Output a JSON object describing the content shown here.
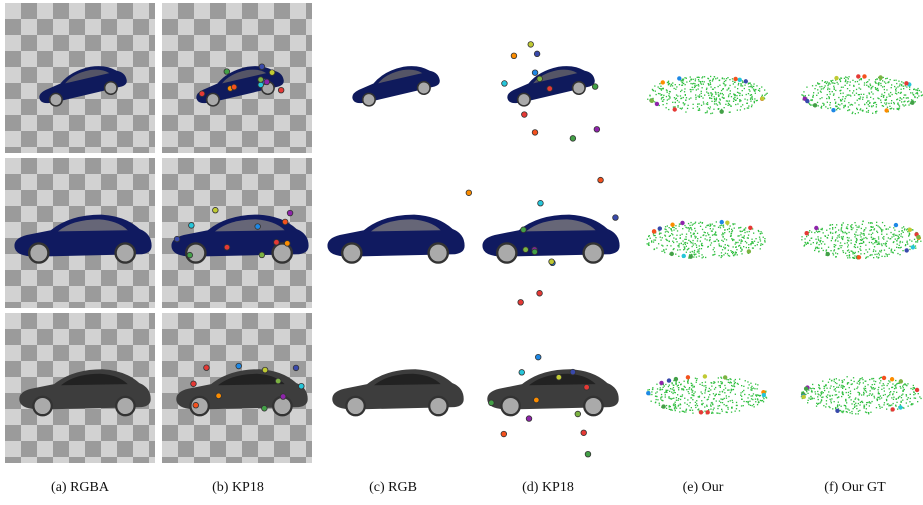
{
  "captions": [
    "(a) RGBA",
    "(b) KP18",
    "(c) RGB",
    "(d) KP18",
    "(e) Our",
    "(f) Our GT"
  ]
}
